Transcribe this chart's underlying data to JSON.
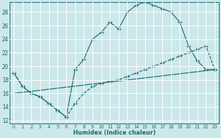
{
  "xlabel": "Humidex (Indice chaleur)",
  "background_color": "#cce8ea",
  "grid_color": "#dde8e8",
  "line_color": "#1a6b6b",
  "xlim": [
    -0.5,
    23.5
  ],
  "ylim": [
    11.5,
    29.5
  ],
  "xticks": [
    0,
    1,
    2,
    3,
    4,
    5,
    6,
    7,
    8,
    9,
    10,
    11,
    12,
    13,
    14,
    15,
    16,
    17,
    18,
    19,
    20,
    21,
    22,
    23
  ],
  "yticks": [
    12,
    14,
    16,
    18,
    20,
    22,
    24,
    26,
    28
  ],
  "series": [
    {
      "x": [
        0,
        1,
        2,
        3,
        4,
        5,
        6,
        7,
        8,
        9,
        10,
        11,
        12,
        13,
        14,
        15,
        16,
        17,
        18,
        19,
        20,
        21,
        22,
        23
      ],
      "y": [
        19,
        17,
        16,
        15.5,
        14.5,
        13.5,
        12.5,
        19.5,
        21,
        24,
        25,
        26.5,
        25.5,
        28,
        29,
        29.5,
        29,
        28.5,
        28,
        26.5,
        23.0,
        20.8,
        19.5,
        19.5
      ],
      "linestyle": "-",
      "marker": true,
      "dashed": false
    },
    {
      "x": [
        0,
        1,
        2,
        3,
        4,
        5,
        6,
        7,
        8,
        9,
        10,
        11,
        12,
        13,
        14,
        15,
        16,
        17,
        18,
        19,
        20,
        21,
        22,
        23
      ],
      "y": [
        19,
        17,
        16,
        15.5,
        14.5,
        13.5,
        12.5,
        14.5,
        16,
        17,
        17.5,
        17.8,
        18,
        18.5,
        19,
        19.5,
        20,
        20.5,
        21,
        21.5,
        22,
        22.5,
        23,
        19.5
      ],
      "linestyle": "--",
      "marker": true,
      "dashed": true
    },
    {
      "x": [
        0,
        23
      ],
      "y": [
        16,
        19.5
      ],
      "linestyle": "-",
      "marker": false,
      "dashed": false
    }
  ]
}
